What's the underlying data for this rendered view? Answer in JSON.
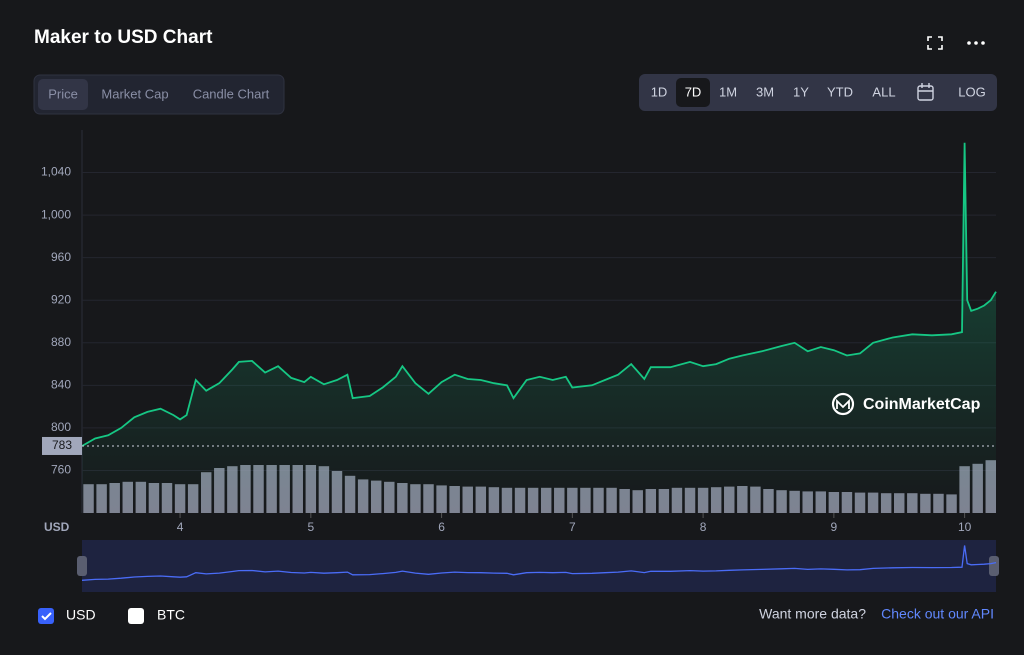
{
  "title": "Maker to USD Chart",
  "tabs": [
    "Price",
    "Market Cap",
    "Candle Chart"
  ],
  "ranges": [
    "1D",
    "7D",
    "1M",
    "3M",
    "1Y",
    "YTD",
    "ALL"
  ],
  "log_button": "LOG",
  "watermark": "CoinMarketCap",
  "btc_toggle": "BTC",
  "footer": {
    "prompt": "Want more data?",
    "link": "Check out our API"
  },
  "chart_data": {
    "type": "line",
    "y_axis_label": "USD",
    "current_price": 783,
    "xlim": [
      3.25,
      10.24
    ],
    "xticks": [
      4,
      5,
      6,
      7,
      8,
      9,
      10
    ],
    "ylim": [
      720,
      1080
    ],
    "yticks": [
      760,
      800,
      840,
      880,
      920,
      960,
      {
        "value": 1000,
        "label": "1,000"
      },
      {
        "value": 1040,
        "label": "1,040"
      }
    ],
    "grid": true,
    "series": [
      {
        "name": "USD",
        "color": "#16c784",
        "x": [
          3.25,
          3.35,
          3.45,
          3.55,
          3.65,
          3.75,
          3.85,
          3.95,
          4.0,
          4.05,
          4.12,
          4.2,
          4.3,
          4.4,
          4.45,
          4.55,
          4.65,
          4.75,
          4.85,
          4.95,
          5.0,
          5.1,
          5.2,
          5.28,
          5.32,
          5.45,
          5.55,
          5.65,
          5.7,
          5.8,
          5.9,
          6.0,
          6.1,
          6.2,
          6.3,
          6.4,
          6.5,
          6.55,
          6.65,
          6.75,
          6.85,
          6.95,
          7.0,
          7.15,
          7.25,
          7.35,
          7.45,
          7.55,
          7.6,
          7.75,
          7.9,
          8.0,
          8.1,
          8.2,
          8.3,
          8.45,
          8.6,
          8.7,
          8.8,
          8.9,
          9.0,
          9.1,
          9.2,
          9.3,
          9.45,
          9.6,
          9.75,
          9.9,
          9.98,
          10.0,
          10.02,
          10.05,
          10.1,
          10.15,
          10.2,
          10.24
        ],
        "values": [
          783,
          790,
          793,
          800,
          810,
          815,
          818,
          812,
          808,
          812,
          845,
          835,
          842,
          855,
          862,
          863,
          852,
          858,
          847,
          843,
          848,
          841,
          845,
          850,
          828,
          830,
          838,
          848,
          858,
          842,
          832,
          843,
          850,
          846,
          845,
          842,
          840,
          828,
          845,
          848,
          845,
          848,
          838,
          840,
          845,
          850,
          860,
          846,
          857,
          857,
          862,
          858,
          860,
          865,
          868,
          872,
          877,
          880,
          872,
          876,
          873,
          868,
          870,
          880,
          885,
          888,
          887,
          888,
          890,
          1068,
          920,
          910,
          912,
          915,
          920,
          928
        ]
      }
    ],
    "volume": {
      "color": "#a1a7bb",
      "x": [
        3.3,
        3.4,
        3.5,
        3.6,
        3.7,
        3.8,
        3.9,
        4.0,
        4.1,
        4.2,
        4.3,
        4.4,
        4.5,
        4.6,
        4.7,
        4.8,
        4.9,
        5.0,
        5.1,
        5.2,
        5.3,
        5.4,
        5.5,
        5.6,
        5.7,
        5.8,
        5.9,
        6.0,
        6.1,
        6.2,
        6.3,
        6.4,
        6.5,
        6.6,
        6.7,
        6.8,
        6.9,
        7.0,
        7.1,
        7.2,
        7.3,
        7.4,
        7.5,
        7.6,
        7.7,
        7.8,
        7.9,
        8.0,
        8.1,
        8.2,
        8.3,
        8.4,
        8.5,
        8.6,
        8.7,
        8.8,
        8.9,
        9.0,
        9.1,
        9.2,
        9.3,
        9.4,
        9.5,
        9.6,
        9.7,
        9.8,
        9.9,
        10.0,
        10.1,
        10.2
      ],
      "values": [
        48,
        48,
        50,
        52,
        52,
        50,
        50,
        48,
        48,
        68,
        75,
        78,
        80,
        80,
        80,
        80,
        80,
        80,
        78,
        70,
        62,
        56,
        54,
        52,
        50,
        48,
        48,
        46,
        45,
        44,
        44,
        43,
        42,
        42,
        42,
        42,
        42,
        42,
        42,
        42,
        42,
        40,
        38,
        40,
        40,
        42,
        42,
        42,
        43,
        44,
        45,
        44,
        40,
        38,
        37,
        36,
        36,
        35,
        35,
        34,
        34,
        33,
        33,
        33,
        32,
        32,
        31,
        78,
        82,
        88
      ],
      "vlim": [
        0,
        100
      ]
    }
  }
}
